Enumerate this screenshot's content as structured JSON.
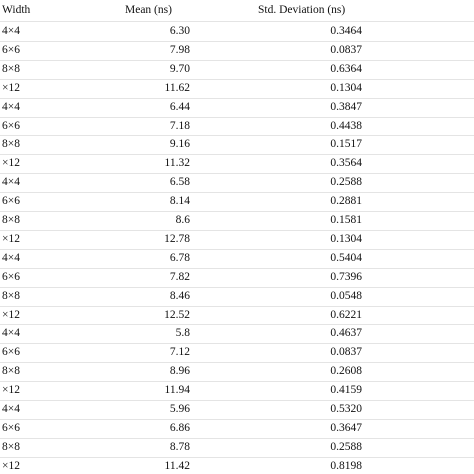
{
  "table": {
    "header": [
      "Width",
      "Mean (ns)",
      "Std. Deviation (ns)"
    ],
    "rows": [
      [
        "4×4",
        "6.30",
        "0.3464"
      ],
      [
        "6×6",
        "7.98",
        "0.0837"
      ],
      [
        "8×8",
        "9.70",
        "0.6364"
      ],
      [
        "×12",
        "11.62",
        "0.1304"
      ],
      [
        "4×4",
        "6.44",
        "0.3847"
      ],
      [
        "6×6",
        "7.18",
        "0.4438"
      ],
      [
        "8×8",
        "9.16",
        "0.1517"
      ],
      [
        "×12",
        "11.32",
        "0.3564"
      ],
      [
        "4×4",
        "6.58",
        "0.2588"
      ],
      [
        "6×6",
        "8.14",
        "0.2881"
      ],
      [
        "8×8",
        "8.6",
        "0.1581"
      ],
      [
        "×12",
        "12.78",
        "0.1304"
      ],
      [
        "4×4",
        "6.78",
        "0.5404"
      ],
      [
        "6×6",
        "7.82",
        "0.7396"
      ],
      [
        "8×8",
        "8.46",
        "0.0548"
      ],
      [
        "×12",
        "12.52",
        "0.6221"
      ],
      [
        "4×4",
        "5.8",
        "0.4637"
      ],
      [
        "6×6",
        "7.12",
        "0.0837"
      ],
      [
        "8×8",
        "8.96",
        "0.2608"
      ],
      [
        "×12",
        "11.94",
        "0.4159"
      ],
      [
        "4×4",
        "5.96",
        "0.5320"
      ],
      [
        "6×6",
        "6.86",
        "0.3647"
      ],
      [
        "8×8",
        "8.78",
        "0.2588"
      ],
      [
        "×12",
        "11.42",
        "0.8198"
      ]
    ]
  }
}
